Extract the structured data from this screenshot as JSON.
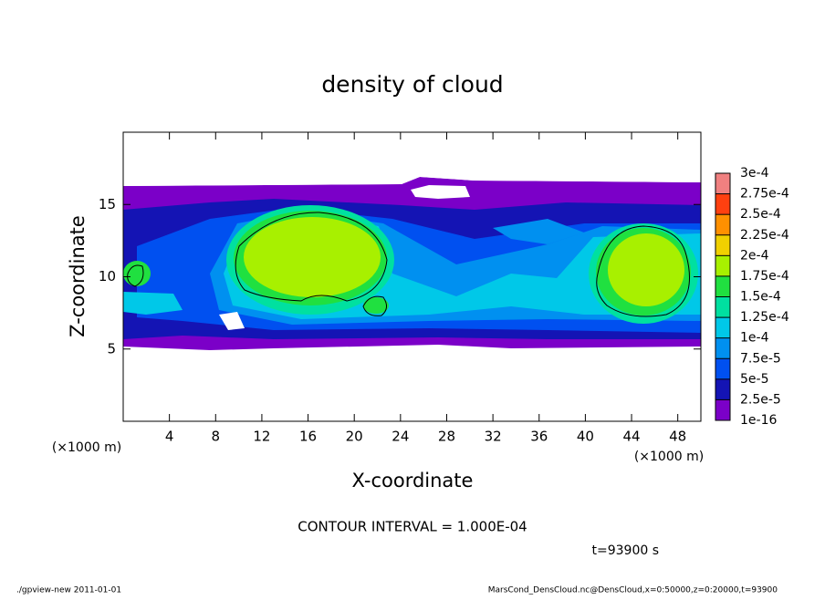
{
  "chart_data": {
    "type": "contour",
    "title": "density of cloud",
    "xlabel": "X-coordinate",
    "ylabel": "Z-coordinate",
    "xunit": "(×1000 m)",
    "yunit": "(×1000 m)",
    "xlim": [
      0,
      50
    ],
    "ylim": [
      0,
      20
    ],
    "xticks": [
      4,
      8,
      12,
      16,
      20,
      24,
      28,
      32,
      36,
      40,
      44,
      48
    ],
    "yticks": [
      5,
      10,
      15
    ],
    "levels": [
      {
        "value": 1e-16,
        "label": "1e-16"
      },
      {
        "value": 2.5e-05,
        "label": "2.5e-5"
      },
      {
        "value": 5e-05,
        "label": "5e-5"
      },
      {
        "value": 7.5e-05,
        "label": "7.5e-5"
      },
      {
        "value": 0.0001,
        "label": "1e-4"
      },
      {
        "value": 0.000125,
        "label": "1.25e-4"
      },
      {
        "value": 0.00015,
        "label": "1.5e-4"
      },
      {
        "value": 0.000175,
        "label": "1.75e-4"
      },
      {
        "value": 0.0002,
        "label": "2e-4"
      },
      {
        "value": 0.000225,
        "label": "2.25e-4"
      },
      {
        "value": 0.00025,
        "label": "2.5e-4"
      },
      {
        "value": 0.000275,
        "label": "2.75e-4"
      },
      {
        "value": 0.0003,
        "label": "3e-4"
      }
    ],
    "colors": [
      "#7b00c8",
      "#1414b4",
      "#0050f0",
      "#0090f0",
      "#00c8e8",
      "#00e0a0",
      "#20e040",
      "#a8f000",
      "#f0d000",
      "#ff9000",
      "#ff4010",
      "#f08080"
    ],
    "contour_interval": "CONTOUR INTERVAL = 1.000E-04",
    "time": "t=93900 s"
  },
  "footer": {
    "left": "./gpview-new   2011-01-01",
    "right": "MarsCond_DensCloud.nc@DensCloud,x=0:50000,z=0:20000,t=93900"
  }
}
